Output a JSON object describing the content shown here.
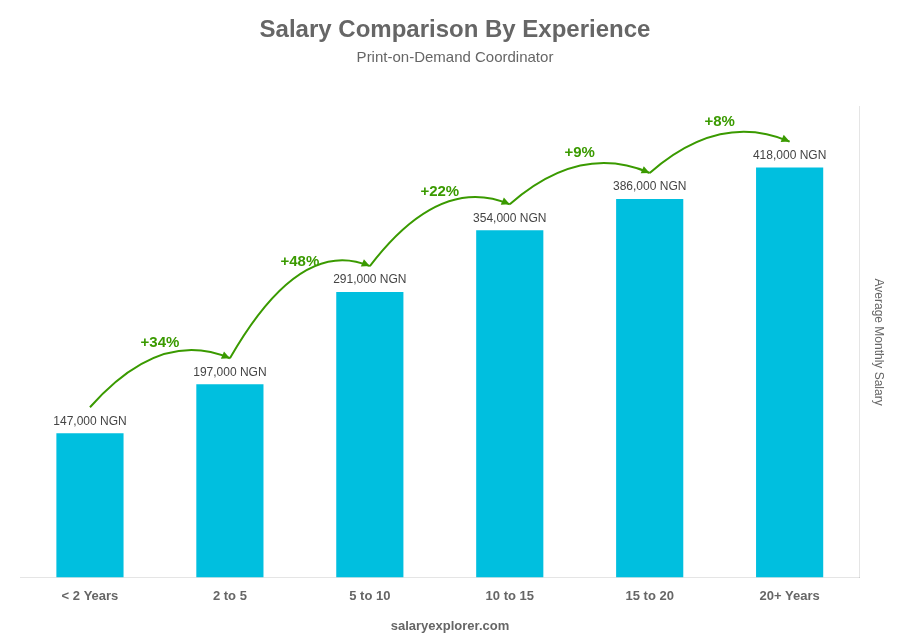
{
  "chart_data": {
    "type": "bar",
    "title": "Salary Comparison By Experience",
    "subtitle": "Print-on-Demand Coordinator",
    "ylabel": "Average Monthly Salary",
    "categories": [
      "< 2 Years",
      "2 to 5",
      "5 to 10",
      "10 to 15",
      "15 to 20",
      "20+ Years"
    ],
    "values": [
      147000,
      197000,
      291000,
      354000,
      386000,
      418000
    ],
    "value_labels": [
      "147,000 NGN",
      "197,000 NGN",
      "291,000 NGN",
      "354,000 NGN",
      "386,000 NGN",
      "418,000 NGN"
    ],
    "data_labels": true,
    "annotations": [
      "+34%",
      "+48%",
      "+22%",
      "+9%",
      "+8%"
    ],
    "footer": "salaryexplorer.com",
    "color": "#00BFDF",
    "ylim": [
      0,
      480000
    ],
    "grid": false,
    "tick_labels": "x"
  }
}
